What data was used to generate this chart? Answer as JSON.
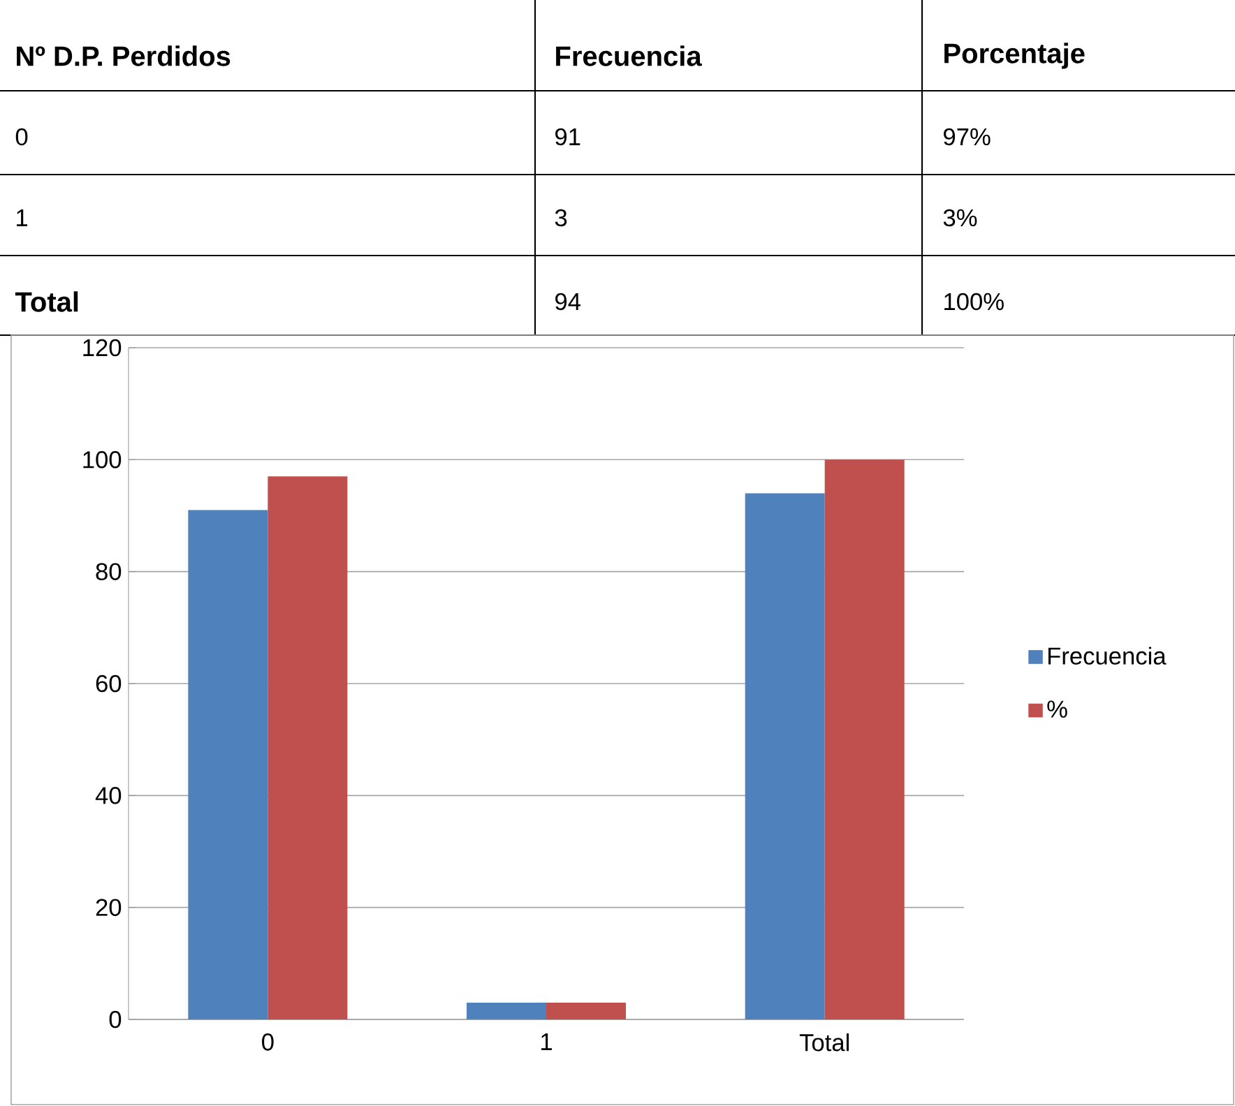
{
  "chart_data": {
    "type": "bar",
    "categories": [
      "0",
      "1",
      "Total"
    ],
    "series": [
      {
        "name": "Frecuencia",
        "color": "#4f81bd",
        "values": [
          91,
          3,
          94
        ]
      },
      {
        "name": "%",
        "color": "#c0504d",
        "values": [
          97,
          3,
          100
        ]
      }
    ],
    "ylim": [
      0,
      120
    ],
    "yticks": [
      0,
      20,
      40,
      60,
      80,
      100,
      120
    ],
    "grid": "y",
    "legend": "right",
    "annotations": [
      "Nº D.P. Perdidos",
      "Frecuencia",
      "Porcentaje",
      "91",
      "97%",
      "3",
      "3%",
      "94",
      "100%"
    ]
  }
}
